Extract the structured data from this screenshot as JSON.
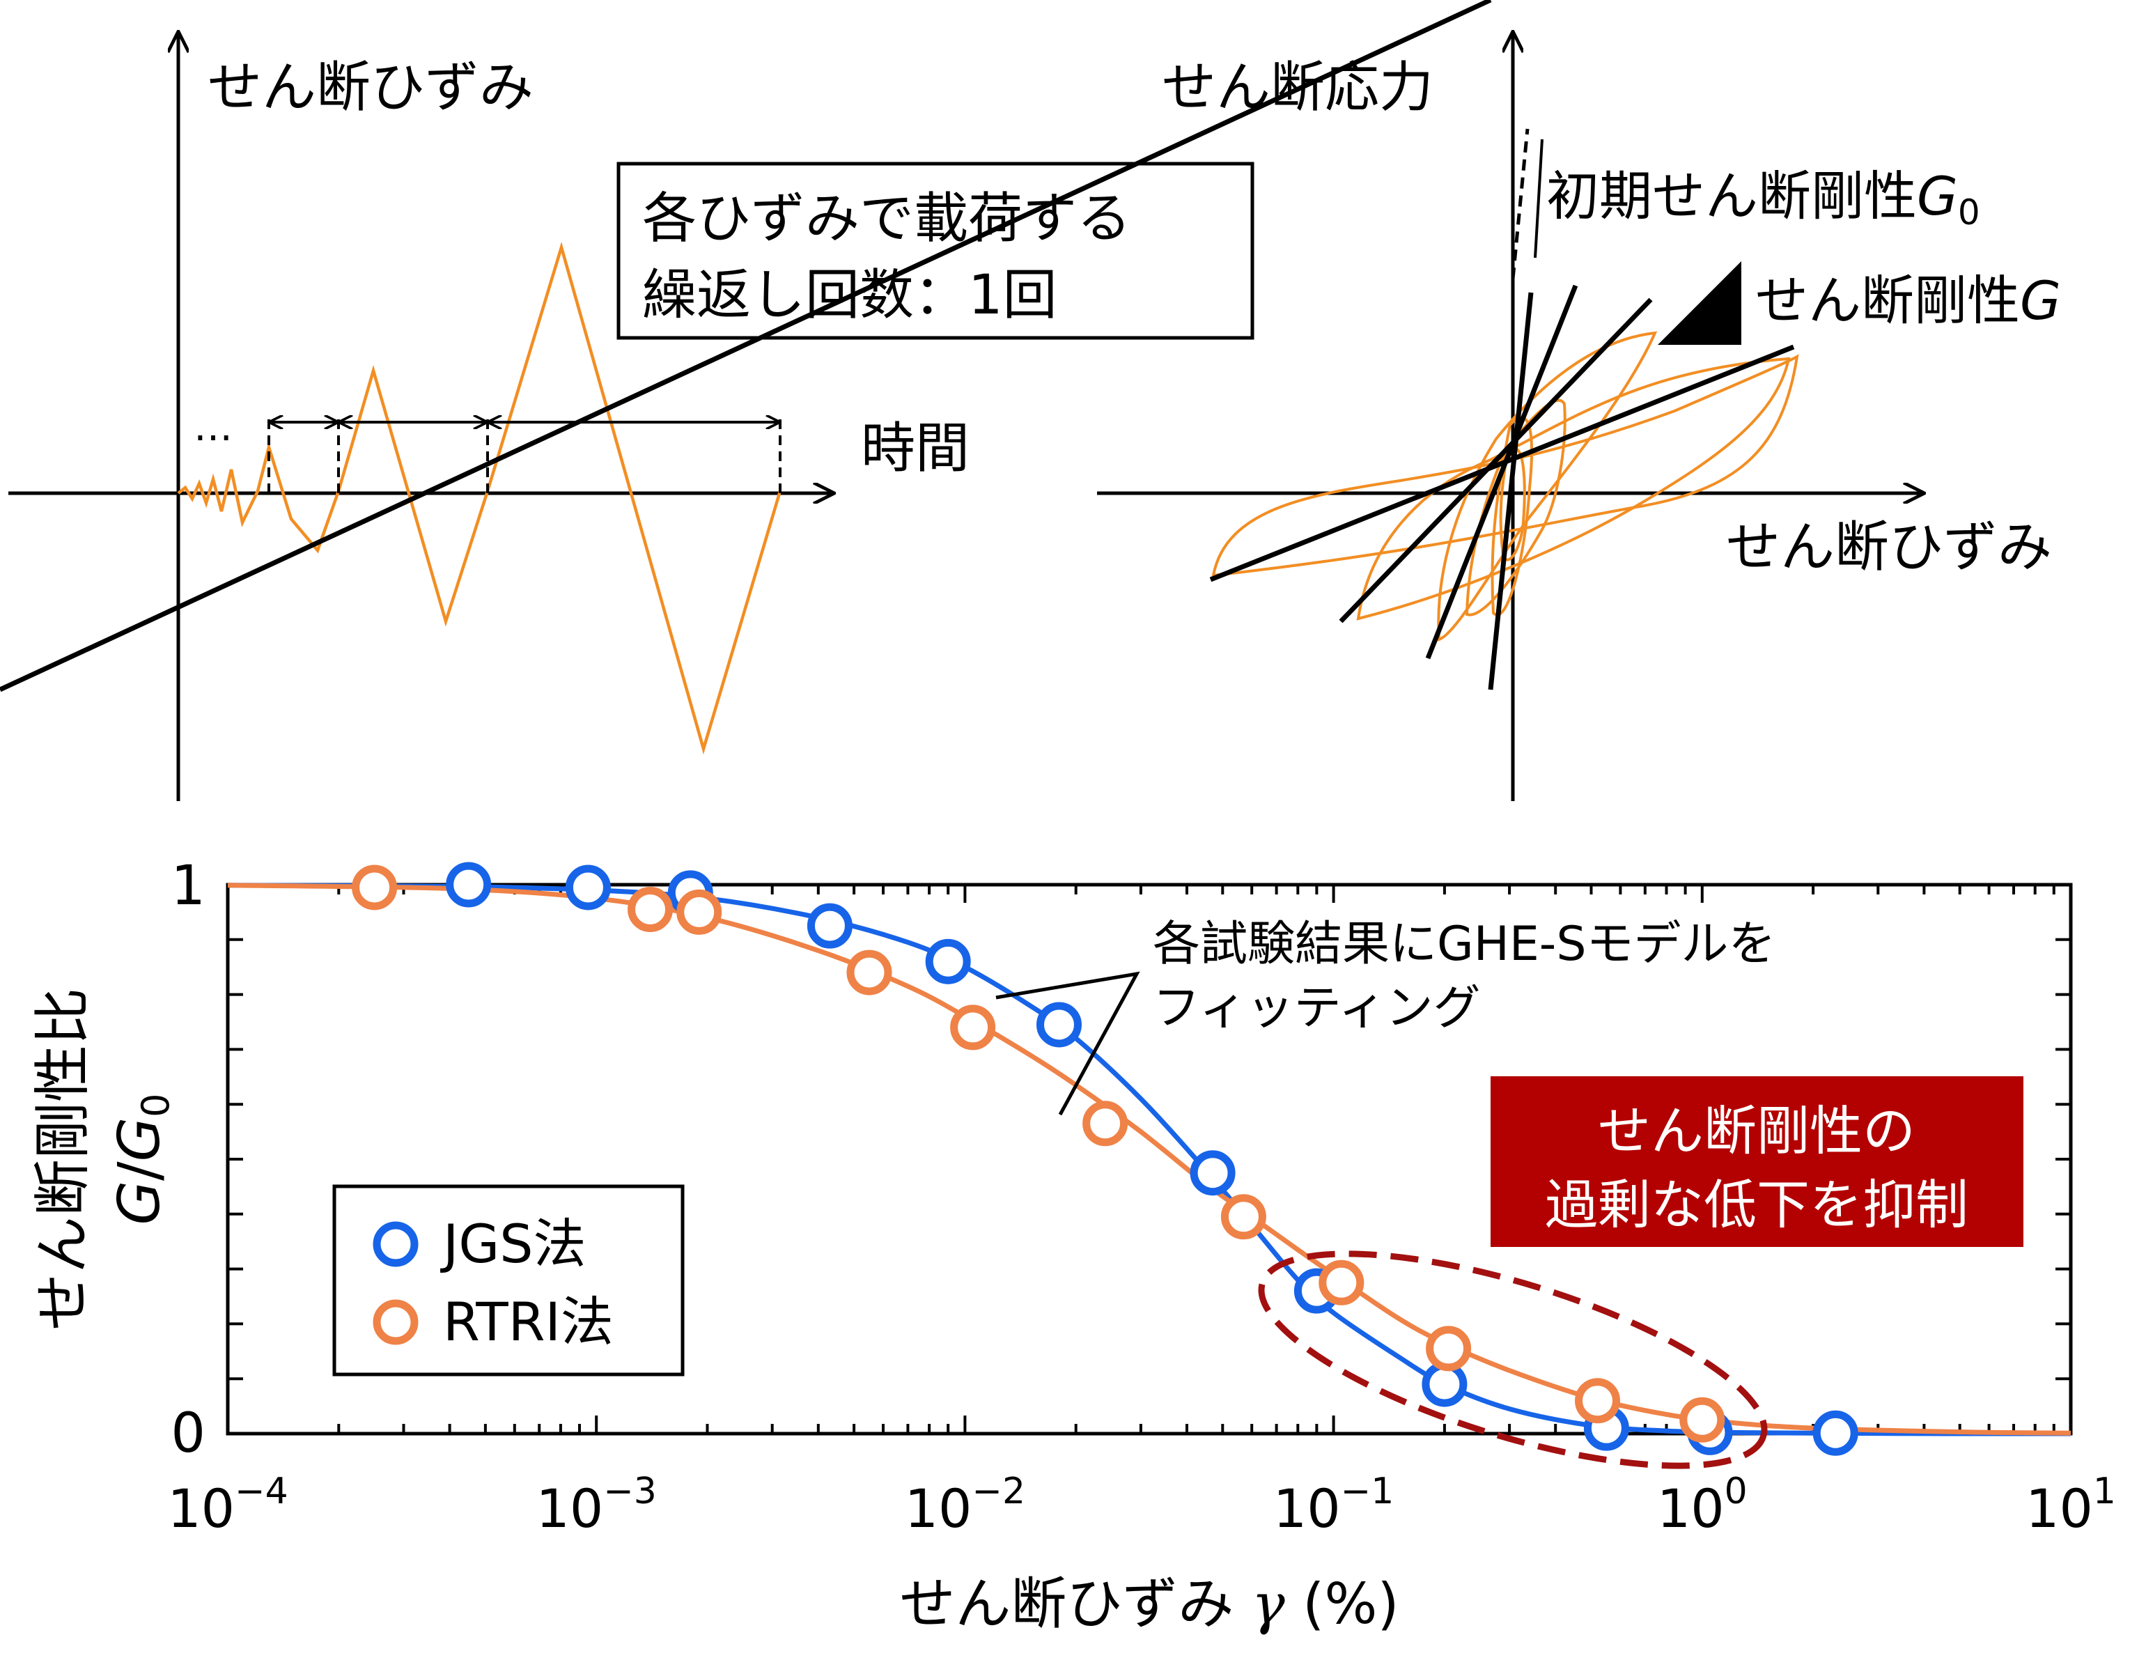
{
  "colors": {
    "orange_line": "#f28e23",
    "blue_series": "#1764e8",
    "orange_series": "#ef8247",
    "black": "#000000",
    "highlight_bg": "#b30000",
    "ellipse_dash": "#a31010"
  },
  "panel_a": {
    "y_label": "せん断ひずみ",
    "x_label": "時間",
    "dots": "…",
    "note_line1": "各ひずみで載荷する",
    "note_line2": "繰返し回数：1回"
  },
  "panel_b": {
    "y_label": "せん断応力",
    "x_label": "せん断ひずみ",
    "g0_label": "初期せん断剛性",
    "g0_symbol": "G",
    "g0_sub": "0",
    "g_label": "せん断剛性",
    "g_symbol": "G"
  },
  "chart_data": {
    "type": "scatter",
    "ylabel_line1": "せん断剛性比",
    "ylabel_G": "G",
    "ylabel_slash": "/",
    "ylabel_G0": "G",
    "ylabel_sub": "0",
    "xlabel_main": "せん断ひずみ ",
    "xlabel_gamma": "γ",
    "xlabel_unit": " (%)",
    "x_scale": "log",
    "xlim": [
      0.0001,
      10
    ],
    "ylim": [
      0,
      1
    ],
    "x_tick_labels": [
      {
        "base": "10",
        "exp": "−4"
      },
      {
        "base": "10",
        "exp": "−3"
      },
      {
        "base": "10",
        "exp": "−2"
      },
      {
        "base": "10",
        "exp": "−1"
      },
      {
        "base": "10",
        "exp": "0"
      },
      {
        "base": "10",
        "exp": "1"
      }
    ],
    "y_tick_labels": [
      "0",
      "1"
    ],
    "legend_position": "bottom-left",
    "series": [
      {
        "name": "JGS法",
        "points": [
          [
            0.00045,
            1.0
          ],
          [
            0.00095,
            0.995
          ],
          [
            0.0018,
            0.985
          ],
          [
            0.0043,
            0.925
          ],
          [
            0.009,
            0.86
          ],
          [
            0.018,
            0.745
          ],
          [
            0.047,
            0.475
          ],
          [
            0.09,
            0.26
          ],
          [
            0.2,
            0.09
          ],
          [
            0.55,
            0.01
          ],
          [
            1.05,
            0.002
          ],
          [
            2.3,
            0.001
          ]
        ],
        "fit_x": [
          0.0001,
          0.0004,
          0.001,
          0.002,
          0.004,
          0.007,
          0.01,
          0.015,
          0.02,
          0.03,
          0.045,
          0.06,
          0.08,
          0.1,
          0.15,
          0.2,
          0.3,
          0.5,
          0.8,
          1.2,
          2,
          5,
          10
        ],
        "fit_y": [
          0.999,
          0.997,
          0.99,
          0.975,
          0.94,
          0.895,
          0.85,
          0.78,
          0.72,
          0.61,
          0.48,
          0.38,
          0.28,
          0.22,
          0.14,
          0.09,
          0.045,
          0.015,
          0.005,
          0.002,
          0.001,
          0.0,
          0.0
        ]
      },
      {
        "name": "RTRI法",
        "points": [
          [
            0.00025,
            0.995
          ],
          [
            0.0014,
            0.955
          ],
          [
            0.0019,
            0.95
          ],
          [
            0.0055,
            0.84
          ],
          [
            0.0105,
            0.74
          ],
          [
            0.024,
            0.565
          ],
          [
            0.057,
            0.395
          ],
          [
            0.105,
            0.275
          ],
          [
            0.205,
            0.155
          ],
          [
            0.52,
            0.06
          ],
          [
            1.0,
            0.025
          ]
        ],
        "fit_x": [
          0.0001,
          0.0004,
          0.001,
          0.002,
          0.004,
          0.007,
          0.01,
          0.015,
          0.02,
          0.03,
          0.045,
          0.06,
          0.08,
          0.1,
          0.15,
          0.2,
          0.3,
          0.5,
          0.8,
          1.2,
          2,
          5,
          10
        ],
        "fit_y": [
          0.999,
          0.993,
          0.975,
          0.94,
          0.88,
          0.815,
          0.76,
          0.69,
          0.635,
          0.55,
          0.455,
          0.395,
          0.335,
          0.29,
          0.21,
          0.165,
          0.115,
          0.065,
          0.035,
          0.02,
          0.01,
          0.003,
          0.001
        ]
      }
    ],
    "annotation_fit_line1": "各試験結果にGHE-Sモデルを",
    "annotation_fit_line2": "フィッティング",
    "highlight_line1": "せん断剛性の",
    "highlight_line2": "過剰な低下を抑制"
  }
}
